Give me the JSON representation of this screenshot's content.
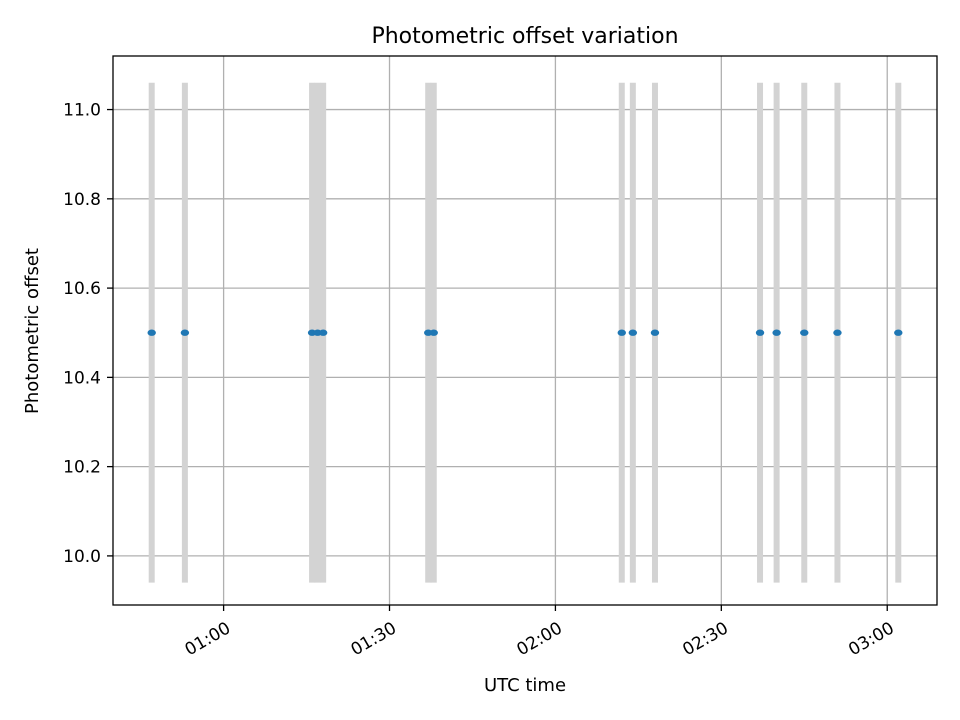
{
  "chart_data": {
    "type": "scatter",
    "title": "Photometric offset variation",
    "xlabel": "UTC time",
    "ylabel": "Photometric offset",
    "x_is_time": true,
    "xlim": [
      "00:40",
      "03:09"
    ],
    "ylim": [
      9.89,
      11.12
    ],
    "x_ticks": [
      "01:00",
      "01:30",
      "02:00",
      "02:30",
      "03:00"
    ],
    "y_ticks": [
      "10.0",
      "10.2",
      "10.4",
      "10.6",
      "10.8",
      "11.0"
    ],
    "grid": true,
    "point_color": "#1f77b4",
    "vline_color": "#d3d3d3",
    "vline_range": [
      9.94,
      11.06
    ],
    "points": [
      {
        "x": "00:47",
        "y": 10.5
      },
      {
        "x": "00:53",
        "y": 10.5
      },
      {
        "x": "01:16",
        "y": 10.5
      },
      {
        "x": "01:17",
        "y": 10.5
      },
      {
        "x": "01:18",
        "y": 10.5
      },
      {
        "x": "01:37",
        "y": 10.5
      },
      {
        "x": "01:38",
        "y": 10.5
      },
      {
        "x": "02:12",
        "y": 10.5
      },
      {
        "x": "02:14",
        "y": 10.5
      },
      {
        "x": "02:18",
        "y": 10.5
      },
      {
        "x": "02:37",
        "y": 10.5
      },
      {
        "x": "02:40",
        "y": 10.5
      },
      {
        "x": "02:45",
        "y": 10.5
      },
      {
        "x": "02:51",
        "y": 10.5
      },
      {
        "x": "03:02",
        "y": 10.5
      }
    ]
  }
}
